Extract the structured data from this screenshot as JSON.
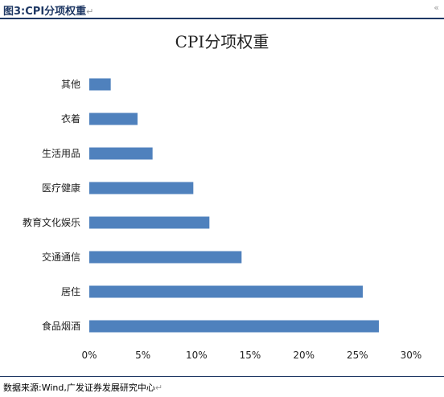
{
  "header": {
    "title": "图3:CPI分项权重",
    "return_mark": "↵",
    "corner_mark": "«"
  },
  "footer": {
    "source": "数据来源:Wind,广发证券发展研究中心",
    "return_mark": "↵"
  },
  "colors": {
    "bar": "#4f81bd",
    "header_rule": "#1f3864"
  },
  "chart_data": {
    "type": "bar",
    "orientation": "horizontal",
    "title": "CPI分项权重",
    "categories": [
      "其他",
      "衣着",
      "生活用品",
      "医疗健康",
      "教育文化娱乐",
      "交通通信",
      "居住",
      "食品烟酒"
    ],
    "values": [
      0.02,
      0.045,
      0.059,
      0.097,
      0.112,
      0.142,
      0.255,
      0.27
    ],
    "xlim": [
      0,
      0.3
    ],
    "xticks": [
      0,
      0.05,
      0.1,
      0.15,
      0.2,
      0.25,
      0.3
    ],
    "xtick_labels": [
      "0%",
      "5%",
      "10%",
      "15%",
      "20%",
      "25%",
      "30%"
    ],
    "xlabel": "",
    "ylabel": "",
    "grid": false,
    "legend": "none"
  }
}
